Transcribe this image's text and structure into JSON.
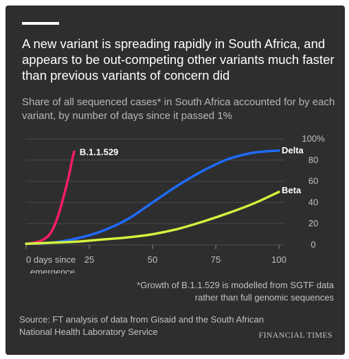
{
  "title": "A new variant is spreading rapidly in South Africa, and appears to be out-competing other variants much faster than previous variants of concern did",
  "subtitle": "Share of all sequenced cases* in South Africa accounted for by each variant, by number of days since it passed 1%",
  "footnote_line1": "*Growth of B.1.1.529 is modelled from SGTF data",
  "footnote_line2": "rather than full genomic sequences",
  "source_line1": "Source: FT analysis of data from Gisaid and the South African",
  "source_line2": "National Health Laboratory Service",
  "brand": "FINANCIAL TIMES",
  "colors": {
    "background": "#2e2e2e",
    "b11529": "#ff1d63",
    "delta": "#1e6bff",
    "beta": "#d4f23c",
    "grid": "#4a4a4a"
  },
  "chart_data": {
    "type": "line",
    "xlim": [
      0,
      100
    ],
    "ylim": [
      0,
      100
    ],
    "x_ticks": [
      {
        "value": 0,
        "line1": "0 days since",
        "line2": "emergence"
      },
      {
        "value": 25,
        "line1": "25",
        "line2": ""
      },
      {
        "value": 50,
        "line1": "50",
        "line2": ""
      },
      {
        "value": 75,
        "line1": "75",
        "line2": ""
      },
      {
        "value": 100,
        "line1": "100",
        "line2": ""
      }
    ],
    "y_ticks": [
      {
        "value": 100,
        "label": "100%"
      },
      {
        "value": 80,
        "label": "80"
      },
      {
        "value": 60,
        "label": "60"
      },
      {
        "value": 40,
        "label": "40"
      },
      {
        "value": 20,
        "label": "20"
      },
      {
        "value": 0,
        "label": "0"
      }
    ],
    "grid": true,
    "series": [
      {
        "name": "B.1.1.529",
        "color": "#ff1d63",
        "x": [
          0,
          3,
          6,
          9,
          11,
          13,
          15,
          17,
          18,
          19
        ],
        "y": [
          1,
          2,
          4,
          9,
          17,
          30,
          47,
          66,
          78,
          88
        ]
      },
      {
        "name": "Delta",
        "color": "#1e6bff",
        "x": [
          0,
          10,
          20,
          30,
          40,
          50,
          60,
          70,
          80,
          90,
          100
        ],
        "y": [
          1,
          2,
          6,
          13,
          24,
          40,
          56,
          70,
          81,
          87,
          89
        ]
      },
      {
        "name": "Beta",
        "color": "#d4f23c",
        "x": [
          0,
          10,
          20,
          30,
          40,
          50,
          60,
          70,
          80,
          90,
          100
        ],
        "y": [
          1,
          2,
          3,
          5,
          7,
          10,
          15,
          22,
          30,
          39,
          50
        ]
      }
    ]
  }
}
